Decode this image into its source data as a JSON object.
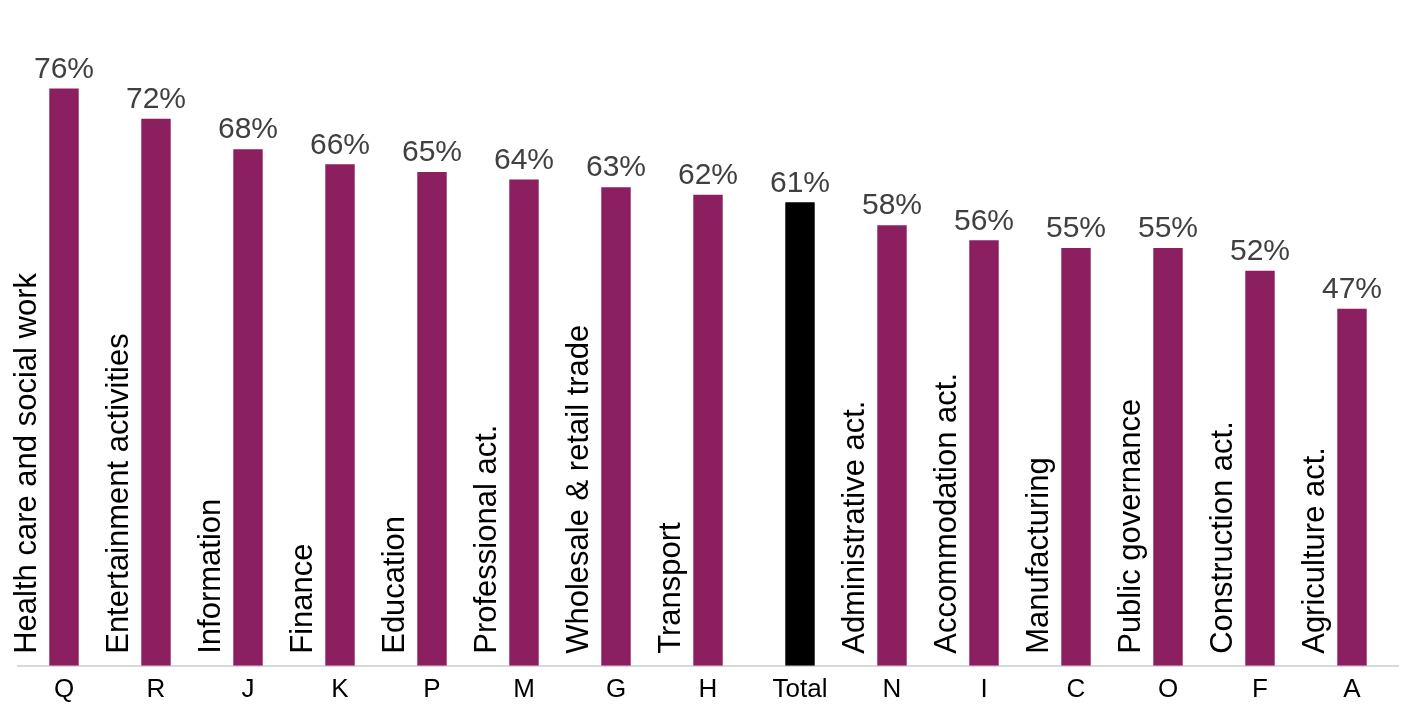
{
  "chart_data": {
    "type": "bar",
    "categories": [
      "Q",
      "R",
      "J",
      "K",
      "P",
      "M",
      "G",
      "H",
      "Total",
      "N",
      "I",
      "C",
      "O",
      "F",
      "A"
    ],
    "values": [
      76,
      72,
      68,
      66,
      65,
      64,
      63,
      62,
      61,
      58,
      56,
      55,
      55,
      52,
      47
    ],
    "value_labels": [
      "76%",
      "72%",
      "68%",
      "66%",
      "65%",
      "64%",
      "63%",
      "62%",
      "61%",
      "58%",
      "56%",
      "55%",
      "55%",
      "52%",
      "47%"
    ],
    "colors": [
      "#8b1f5f",
      "#8b1f5f",
      "#8b1f5f",
      "#8b1f5f",
      "#8b1f5f",
      "#8b1f5f",
      "#8b1f5f",
      "#8b1f5f",
      "#000000",
      "#8b1f5f",
      "#8b1f5f",
      "#8b1f5f",
      "#8b1f5f",
      "#8b1f5f",
      "#8b1f5f"
    ],
    "grid": false,
    "legend": false,
    "annotations": [
      "Health care and social work",
      "Entertainment activities",
      "Information",
      "Finance",
      "Education",
      "Professional act.",
      "Wholesale & retail trade",
      "Transport",
      "Administrative act.",
      "Accommodation act.",
      "Manufacturing",
      "Public governance",
      "Construction act.",
      "Agriculture act."
    ]
  }
}
